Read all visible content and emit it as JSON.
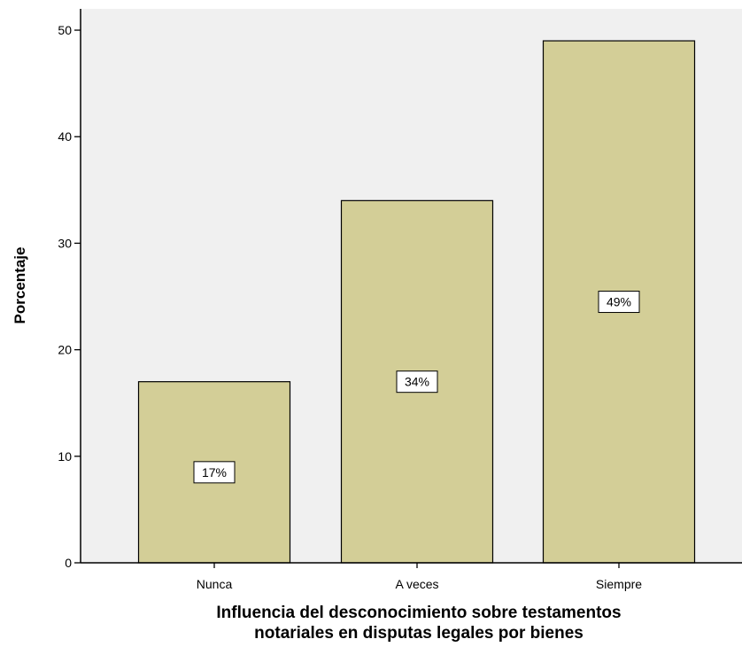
{
  "chart_data": {
    "type": "bar",
    "title": "",
    "xlabel_lines": [
      "Influencia del desconocimiento sobre testamentos",
      "notariales en disputas legales por bienes"
    ],
    "ylabel": "Porcentaje",
    "categories": [
      "Nunca",
      "A veces",
      "Siempre"
    ],
    "values": [
      17,
      34,
      49
    ],
    "data_labels": [
      "17%",
      "34%",
      "49%"
    ],
    "ylim": [
      0,
      52
    ],
    "yticks": [
      0,
      10,
      20,
      30,
      40,
      50
    ],
    "grid": false,
    "legend": "none",
    "colors": {
      "plot_background": "#f0f0f0",
      "bar_fill": "#d3ce97",
      "bar_stroke": "#000000",
      "axis": "#000000",
      "label_box": "#ffffff"
    }
  }
}
